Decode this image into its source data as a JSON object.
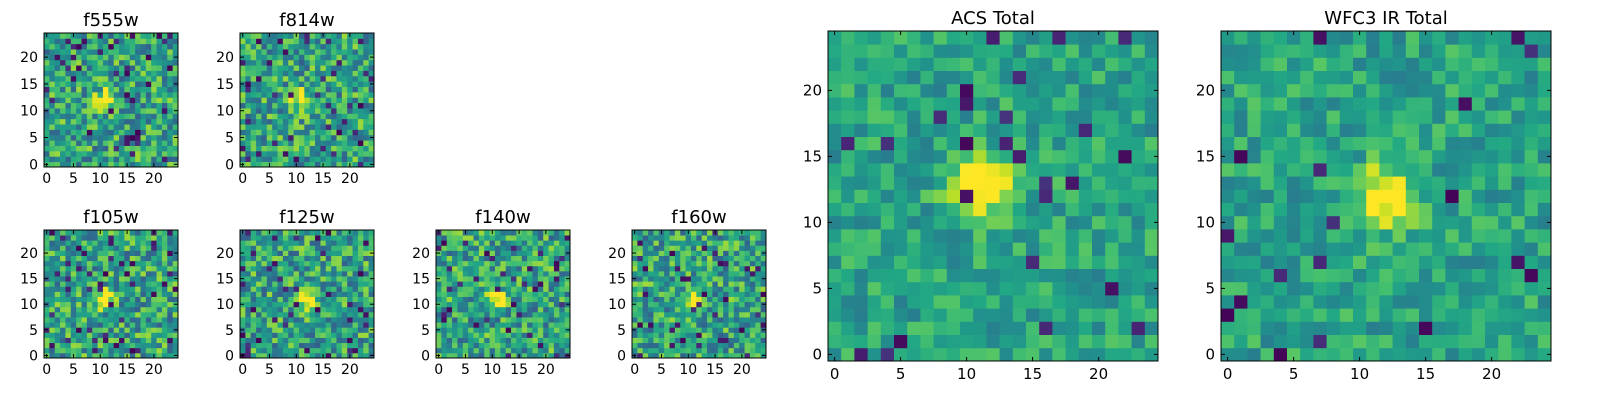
{
  "chart_data": [
    {
      "type": "heatmap",
      "title": "f555w",
      "xticks": [
        "0",
        "5",
        "10",
        "15",
        "20"
      ],
      "yticks": [
        "0",
        "5",
        "10",
        "15",
        "20"
      ],
      "xlim": [
        0,
        25
      ],
      "ylim": [
        0,
        25
      ],
      "colormap": "viridis",
      "peak": [
        11,
        12
      ]
    },
    {
      "type": "heatmap",
      "title": "f814w",
      "xticks": [
        "0",
        "5",
        "10",
        "15",
        "20"
      ],
      "yticks": [
        "0",
        "5",
        "10",
        "15",
        "20"
      ],
      "xlim": [
        0,
        25
      ],
      "ylim": [
        0,
        25
      ],
      "colormap": "viridis",
      "peak": [
        11,
        12
      ]
    },
    {
      "type": "heatmap",
      "title": "f105w",
      "xticks": [
        "0",
        "5",
        "10",
        "15",
        "20"
      ],
      "yticks": [
        "0",
        "5",
        "10",
        "15",
        "20"
      ],
      "xlim": [
        0,
        25
      ],
      "ylim": [
        0,
        25
      ],
      "colormap": "viridis",
      "peak": [
        11,
        11
      ]
    },
    {
      "type": "heatmap",
      "title": "f125w",
      "xticks": [
        "0",
        "5",
        "10",
        "15",
        "20"
      ],
      "yticks": [
        "0",
        "5",
        "10",
        "15",
        "20"
      ],
      "xlim": [
        0,
        25
      ],
      "ylim": [
        0,
        25
      ],
      "colormap": "viridis",
      "peak": [
        12,
        11
      ]
    },
    {
      "type": "heatmap",
      "title": "f140w",
      "xticks": [
        "0",
        "5",
        "10",
        "15",
        "20"
      ],
      "yticks": [
        "0",
        "5",
        "10",
        "15",
        "20"
      ],
      "xlim": [
        0,
        25
      ],
      "ylim": [
        0,
        25
      ],
      "colormap": "viridis",
      "peak": [
        11,
        11
      ]
    },
    {
      "type": "heatmap",
      "title": "f160w",
      "xticks": [
        "0",
        "5",
        "10",
        "15",
        "20"
      ],
      "yticks": [
        "0",
        "5",
        "10",
        "15",
        "20"
      ],
      "xlim": [
        0,
        25
      ],
      "ylim": [
        0,
        25
      ],
      "colormap": "viridis",
      "peak": [
        11,
        11
      ]
    },
    {
      "type": "heatmap",
      "title": "ACS Total",
      "xticks": [
        "0",
        "5",
        "10",
        "15",
        "20"
      ],
      "yticks": [
        "0",
        "5",
        "10",
        "15",
        "20"
      ],
      "xlim": [
        0,
        25
      ],
      "ylim": [
        0,
        25
      ],
      "colormap": "viridis",
      "peak": [
        11,
        13
      ]
    },
    {
      "type": "heatmap",
      "title": "WFC3 IR Total",
      "xticks": [
        "0",
        "5",
        "10",
        "15",
        "20"
      ],
      "yticks": [
        "0",
        "5",
        "10",
        "15",
        "20"
      ],
      "xlim": [
        0,
        25
      ],
      "ylim": [
        0,
        25
      ],
      "colormap": "viridis",
      "peak": [
        12,
        12
      ]
    }
  ]
}
